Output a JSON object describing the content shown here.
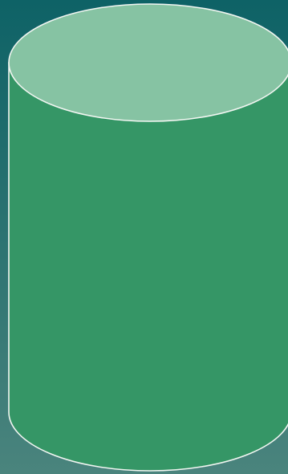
{
  "colors": {
    "background_top": "#0e6266",
    "background_bottom": "#4a847d",
    "cylinder_body": "#359666",
    "cylinder_top": "#86c3a3",
    "outline": "#f2f6f2"
  },
  "shape": "cylinder"
}
